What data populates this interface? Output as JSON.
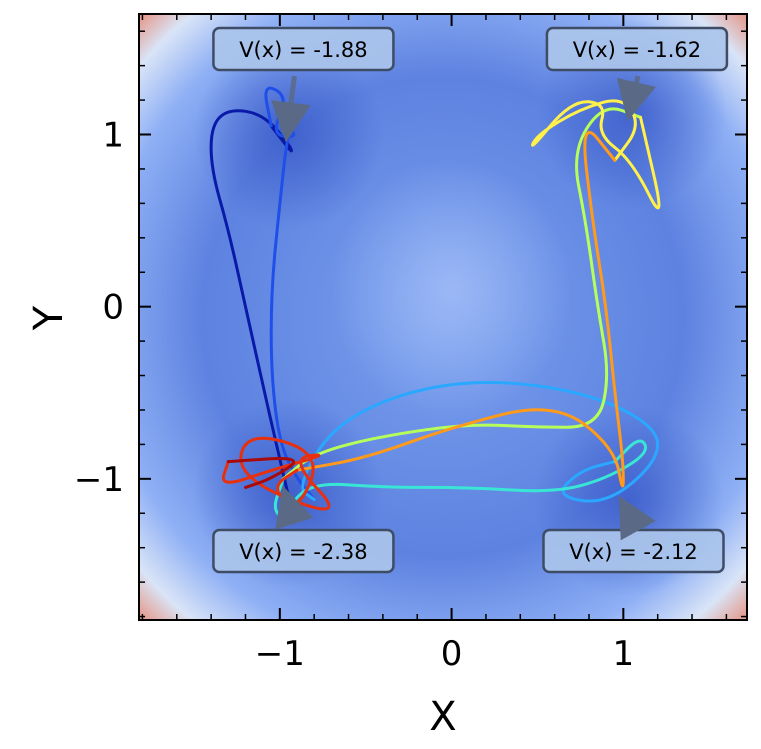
{
  "chart_data": {
    "type": "line",
    "xlabel": "X",
    "ylabel": "Y",
    "xlim": [
      -1.82,
      1.72
    ],
    "ylim": [
      -1.82,
      1.7
    ],
    "xticks": [
      -1,
      0,
      1
    ],
    "yticks": [
      -1,
      0,
      1
    ],
    "xtick_labels": [
      "−1",
      "0",
      "1"
    ],
    "ytick_labels": [
      "−1",
      "0",
      "1"
    ],
    "background": "contour of potential V(x, y) with four wells",
    "colormap": "coolwarm",
    "minima": [
      {
        "label": "V(x) = -1.88",
        "x": -0.95,
        "y": 1.0
      },
      {
        "label": "V(x) = -1.62",
        "x": 1.05,
        "y": 1.12
      },
      {
        "label": "V(x) = -2.38",
        "x": -0.95,
        "y": -1.08
      },
      {
        "label": "V(x) = -2.12",
        "x": 1.03,
        "y": -1.13
      }
    ],
    "trajectory_color_order": [
      "#0a1aa8",
      "#1f4fe8",
      "#2aa8ff",
      "#39e6d6",
      "#b6ff5a",
      "#fff04a",
      "#ff9a1a",
      "#e8300f",
      "#a80a0a"
    ],
    "trajectory": [
      [
        -0.95,
        -1.1
      ],
      [
        -1.02,
        -0.8
      ],
      [
        -1.1,
        -0.45
      ],
      [
        -1.2,
        0.0
      ],
      [
        -1.3,
        0.45
      ],
      [
        -1.4,
        0.8
      ],
      [
        -1.4,
        1.05
      ],
      [
        -1.3,
        1.15
      ],
      [
        -1.1,
        1.12
      ],
      [
        -0.95,
        0.95
      ],
      [
        -0.92,
        0.88
      ],
      [
        -1.05,
        1.05
      ],
      [
        -1.1,
        1.3
      ],
      [
        -0.95,
        1.22
      ],
      [
        -1.05,
        1.0
      ],
      [
        -0.9,
        0.98
      ],
      [
        -0.95,
        1.05
      ],
      [
        -1.0,
        0.6
      ],
      [
        -1.05,
        0.1
      ],
      [
        -1.05,
        -0.4
      ],
      [
        -1.0,
        -0.8
      ],
      [
        -0.9,
        -1.0
      ],
      [
        -0.8,
        -1.12
      ],
      [
        -0.9,
        -1.05
      ],
      [
        -0.7,
        -0.7
      ],
      [
        -0.3,
        -0.5
      ],
      [
        0.2,
        -0.42
      ],
      [
        0.8,
        -0.5
      ],
      [
        1.2,
        -0.7
      ],
      [
        1.2,
        -0.9
      ],
      [
        0.9,
        -1.15
      ],
      [
        0.6,
        -1.1
      ],
      [
        0.75,
        -0.95
      ],
      [
        0.95,
        -0.9
      ],
      [
        1.1,
        -0.75
      ],
      [
        1.15,
        -0.85
      ],
      [
        0.9,
        -1.0
      ],
      [
        0.6,
        -1.08
      ],
      [
        0.1,
        -1.05
      ],
      [
        -0.4,
        -1.05
      ],
      [
        -0.8,
        -1.02
      ],
      [
        -0.95,
        -1.15
      ],
      [
        -0.9,
        -1.25
      ],
      [
        -1.05,
        -1.2
      ],
      [
        -0.98,
        -1.0
      ],
      [
        -0.8,
        -0.85
      ],
      [
        -0.4,
        -0.75
      ],
      [
        0.1,
        -0.68
      ],
      [
        0.5,
        -0.7
      ],
      [
        0.85,
        -0.7
      ],
      [
        0.92,
        -0.4
      ],
      [
        0.85,
        0.0
      ],
      [
        0.78,
        0.5
      ],
      [
        0.7,
        0.9
      ],
      [
        0.88,
        1.18
      ],
      [
        1.1,
        1.1
      ],
      [
        1.25,
        0.45
      ],
      [
        1.05,
        0.85
      ],
      [
        0.85,
        1.0
      ],
      [
        0.9,
        1.18
      ],
      [
        0.7,
        1.2
      ],
      [
        0.45,
        0.9
      ],
      [
        0.5,
        1.0
      ],
      [
        0.75,
        1.15
      ],
      [
        1.0,
        1.22
      ],
      [
        1.1,
        1.05
      ],
      [
        0.95,
        0.85
      ],
      [
        0.75,
        1.1
      ],
      [
        0.82,
        0.5
      ],
      [
        0.9,
        0.0
      ],
      [
        0.95,
        -0.5
      ],
      [
        1.0,
        -0.9
      ],
      [
        1.0,
        -1.1
      ],
      [
        0.95,
        -0.82
      ],
      [
        0.6,
        -0.55
      ],
      [
        0.0,
        -0.7
      ],
      [
        -0.5,
        -0.88
      ],
      [
        -0.9,
        -0.95
      ],
      [
        -1.05,
        -1.05
      ],
      [
        -0.9,
        -1.2
      ],
      [
        -0.75,
        -0.85
      ],
      [
        -1.2,
        -0.72
      ],
      [
        -1.25,
        -1.0
      ],
      [
        -0.6,
        -1.25
      ],
      [
        -0.95,
        -0.88
      ],
      [
        -0.7,
        -0.85
      ],
      [
        -1.05,
        -0.95
      ],
      [
        -1.35,
        -1.05
      ],
      [
        -1.3,
        -0.9
      ],
      [
        -0.85,
        -0.87
      ],
      [
        -1.05,
        -1.0
      ],
      [
        -1.2,
        -1.05
      ]
    ]
  }
}
